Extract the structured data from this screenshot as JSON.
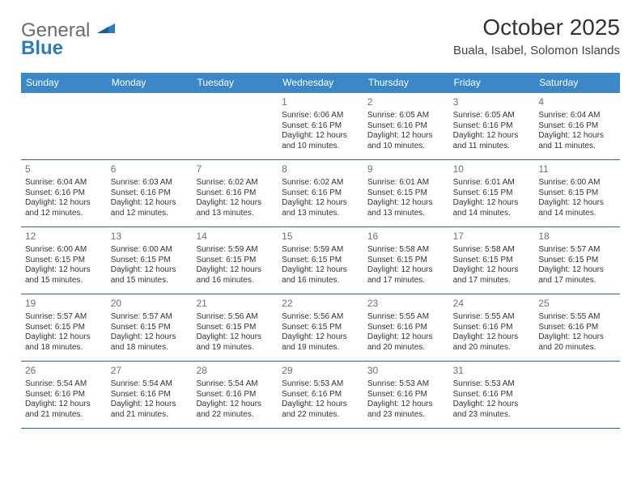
{
  "logo": {
    "general": "General",
    "blue": "Blue"
  },
  "title": "October 2025",
  "location": "Buala, Isabel, Solomon Islands",
  "colors": {
    "header_bg": "#3b87c8",
    "header_text": "#ffffff",
    "border": "#2b6aa3",
    "daynum": "#6f6f6f",
    "body_text": "#333333",
    "logo_gray": "#6b6b6b",
    "logo_blue": "#2b7bbf"
  },
  "dow": [
    "Sunday",
    "Monday",
    "Tuesday",
    "Wednesday",
    "Thursday",
    "Friday",
    "Saturday"
  ],
  "weeks": [
    [
      null,
      null,
      null,
      {
        "n": "1",
        "sr": "Sunrise: 6:06 AM",
        "ss": "Sunset: 6:16 PM",
        "d1": "Daylight: 12 hours",
        "d2": "and 10 minutes."
      },
      {
        "n": "2",
        "sr": "Sunrise: 6:05 AM",
        "ss": "Sunset: 6:16 PM",
        "d1": "Daylight: 12 hours",
        "d2": "and 10 minutes."
      },
      {
        "n": "3",
        "sr": "Sunrise: 6:05 AM",
        "ss": "Sunset: 6:16 PM",
        "d1": "Daylight: 12 hours",
        "d2": "and 11 minutes."
      },
      {
        "n": "4",
        "sr": "Sunrise: 6:04 AM",
        "ss": "Sunset: 6:16 PM",
        "d1": "Daylight: 12 hours",
        "d2": "and 11 minutes."
      }
    ],
    [
      {
        "n": "5",
        "sr": "Sunrise: 6:04 AM",
        "ss": "Sunset: 6:16 PM",
        "d1": "Daylight: 12 hours",
        "d2": "and 12 minutes."
      },
      {
        "n": "6",
        "sr": "Sunrise: 6:03 AM",
        "ss": "Sunset: 6:16 PM",
        "d1": "Daylight: 12 hours",
        "d2": "and 12 minutes."
      },
      {
        "n": "7",
        "sr": "Sunrise: 6:02 AM",
        "ss": "Sunset: 6:16 PM",
        "d1": "Daylight: 12 hours",
        "d2": "and 13 minutes."
      },
      {
        "n": "8",
        "sr": "Sunrise: 6:02 AM",
        "ss": "Sunset: 6:16 PM",
        "d1": "Daylight: 12 hours",
        "d2": "and 13 minutes."
      },
      {
        "n": "9",
        "sr": "Sunrise: 6:01 AM",
        "ss": "Sunset: 6:15 PM",
        "d1": "Daylight: 12 hours",
        "d2": "and 13 minutes."
      },
      {
        "n": "10",
        "sr": "Sunrise: 6:01 AM",
        "ss": "Sunset: 6:15 PM",
        "d1": "Daylight: 12 hours",
        "d2": "and 14 minutes."
      },
      {
        "n": "11",
        "sr": "Sunrise: 6:00 AM",
        "ss": "Sunset: 6:15 PM",
        "d1": "Daylight: 12 hours",
        "d2": "and 14 minutes."
      }
    ],
    [
      {
        "n": "12",
        "sr": "Sunrise: 6:00 AM",
        "ss": "Sunset: 6:15 PM",
        "d1": "Daylight: 12 hours",
        "d2": "and 15 minutes."
      },
      {
        "n": "13",
        "sr": "Sunrise: 6:00 AM",
        "ss": "Sunset: 6:15 PM",
        "d1": "Daylight: 12 hours",
        "d2": "and 15 minutes."
      },
      {
        "n": "14",
        "sr": "Sunrise: 5:59 AM",
        "ss": "Sunset: 6:15 PM",
        "d1": "Daylight: 12 hours",
        "d2": "and 16 minutes."
      },
      {
        "n": "15",
        "sr": "Sunrise: 5:59 AM",
        "ss": "Sunset: 6:15 PM",
        "d1": "Daylight: 12 hours",
        "d2": "and 16 minutes."
      },
      {
        "n": "16",
        "sr": "Sunrise: 5:58 AM",
        "ss": "Sunset: 6:15 PM",
        "d1": "Daylight: 12 hours",
        "d2": "and 17 minutes."
      },
      {
        "n": "17",
        "sr": "Sunrise: 5:58 AM",
        "ss": "Sunset: 6:15 PM",
        "d1": "Daylight: 12 hours",
        "d2": "and 17 minutes."
      },
      {
        "n": "18",
        "sr": "Sunrise: 5:57 AM",
        "ss": "Sunset: 6:15 PM",
        "d1": "Daylight: 12 hours",
        "d2": "and 17 minutes."
      }
    ],
    [
      {
        "n": "19",
        "sr": "Sunrise: 5:57 AM",
        "ss": "Sunset: 6:15 PM",
        "d1": "Daylight: 12 hours",
        "d2": "and 18 minutes."
      },
      {
        "n": "20",
        "sr": "Sunrise: 5:57 AM",
        "ss": "Sunset: 6:15 PM",
        "d1": "Daylight: 12 hours",
        "d2": "and 18 minutes."
      },
      {
        "n": "21",
        "sr": "Sunrise: 5:56 AM",
        "ss": "Sunset: 6:15 PM",
        "d1": "Daylight: 12 hours",
        "d2": "and 19 minutes."
      },
      {
        "n": "22",
        "sr": "Sunrise: 5:56 AM",
        "ss": "Sunset: 6:15 PM",
        "d1": "Daylight: 12 hours",
        "d2": "and 19 minutes."
      },
      {
        "n": "23",
        "sr": "Sunrise: 5:55 AM",
        "ss": "Sunset: 6:16 PM",
        "d1": "Daylight: 12 hours",
        "d2": "and 20 minutes."
      },
      {
        "n": "24",
        "sr": "Sunrise: 5:55 AM",
        "ss": "Sunset: 6:16 PM",
        "d1": "Daylight: 12 hours",
        "d2": "and 20 minutes."
      },
      {
        "n": "25",
        "sr": "Sunrise: 5:55 AM",
        "ss": "Sunset: 6:16 PM",
        "d1": "Daylight: 12 hours",
        "d2": "and 20 minutes."
      }
    ],
    [
      {
        "n": "26",
        "sr": "Sunrise: 5:54 AM",
        "ss": "Sunset: 6:16 PM",
        "d1": "Daylight: 12 hours",
        "d2": "and 21 minutes."
      },
      {
        "n": "27",
        "sr": "Sunrise: 5:54 AM",
        "ss": "Sunset: 6:16 PM",
        "d1": "Daylight: 12 hours",
        "d2": "and 21 minutes."
      },
      {
        "n": "28",
        "sr": "Sunrise: 5:54 AM",
        "ss": "Sunset: 6:16 PM",
        "d1": "Daylight: 12 hours",
        "d2": "and 22 minutes."
      },
      {
        "n": "29",
        "sr": "Sunrise: 5:53 AM",
        "ss": "Sunset: 6:16 PM",
        "d1": "Daylight: 12 hours",
        "d2": "and 22 minutes."
      },
      {
        "n": "30",
        "sr": "Sunrise: 5:53 AM",
        "ss": "Sunset: 6:16 PM",
        "d1": "Daylight: 12 hours",
        "d2": "and 23 minutes."
      },
      {
        "n": "31",
        "sr": "Sunrise: 5:53 AM",
        "ss": "Sunset: 6:16 PM",
        "d1": "Daylight: 12 hours",
        "d2": "and 23 minutes."
      },
      null
    ]
  ]
}
